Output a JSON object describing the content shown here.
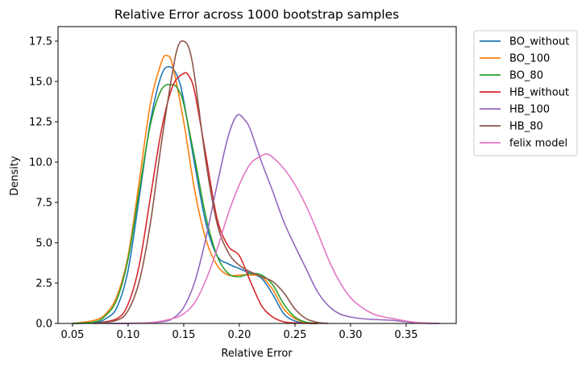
{
  "chart_data": {
    "type": "line",
    "title": "Relative Error across 1000 bootstrap samples",
    "xlabel": "Relative Error",
    "ylabel": "Density",
    "xlim": [
      0.037,
      0.395
    ],
    "ylim": [
      0,
      18.4
    ],
    "xticks": [
      0.05,
      0.1,
      0.15,
      0.2,
      0.25,
      0.3,
      0.35
    ],
    "xtick_labels": [
      "0.05",
      "0.10",
      "0.15",
      "0.20",
      "0.25",
      "0.30",
      "0.35"
    ],
    "yticks": [
      0,
      2.5,
      5,
      7.5,
      10,
      12.5,
      15,
      17.5
    ],
    "ytick_labels": [
      "0.0",
      "2.5",
      "5.0",
      "7.5",
      "10.0",
      "12.5",
      "15.0",
      "17.5"
    ],
    "grid": false,
    "legend_position": "outside-right",
    "series": [
      {
        "name": "BO_without",
        "color": "#1f77b4",
        "x": [
          0.05,
          0.07,
          0.08,
          0.09,
          0.1,
          0.11,
          0.12,
          0.13,
          0.138,
          0.145,
          0.15,
          0.16,
          0.17,
          0.18,
          0.19,
          0.2,
          0.21,
          0.22,
          0.23,
          0.24,
          0.25,
          0.26,
          0.27
        ],
        "y": [
          0.0,
          0.05,
          0.3,
          1.0,
          3.3,
          7.8,
          12.5,
          15.4,
          15.9,
          15.2,
          13.8,
          9.8,
          6.2,
          4.2,
          3.7,
          3.4,
          3.1,
          2.8,
          1.8,
          0.6,
          0.15,
          0.03,
          0.0
        ]
      },
      {
        "name": "BO_100",
        "color": "#ff7f0e",
        "x": [
          0.05,
          0.07,
          0.08,
          0.09,
          0.1,
          0.11,
          0.12,
          0.13,
          0.135,
          0.14,
          0.15,
          0.16,
          0.17,
          0.18,
          0.19,
          0.2,
          0.21,
          0.22,
          0.23,
          0.24,
          0.25,
          0.26,
          0.27
        ],
        "y": [
          0.0,
          0.2,
          0.6,
          1.7,
          4.2,
          8.8,
          13.6,
          16.2,
          16.6,
          16.0,
          12.5,
          8.2,
          5.2,
          3.6,
          3.0,
          3.0,
          3.0,
          2.9,
          2.1,
          0.9,
          0.3,
          0.05,
          0.0
        ]
      },
      {
        "name": "BO_80",
        "color": "#2ca02c",
        "x": [
          0.05,
          0.07,
          0.08,
          0.09,
          0.1,
          0.11,
          0.12,
          0.13,
          0.14,
          0.145,
          0.15,
          0.16,
          0.17,
          0.18,
          0.19,
          0.2,
          0.21,
          0.22,
          0.23,
          0.24,
          0.25,
          0.26,
          0.27
        ],
        "y": [
          0.0,
          0.1,
          0.5,
          1.5,
          4.0,
          8.2,
          12.3,
          14.5,
          14.8,
          14.5,
          13.6,
          10.2,
          6.6,
          4.2,
          3.1,
          2.9,
          3.1,
          3.0,
          2.4,
          1.2,
          0.4,
          0.08,
          0.0
        ]
      },
      {
        "name": "HB_without",
        "color": "#d62728",
        "x": [
          0.07,
          0.09,
          0.1,
          0.11,
          0.12,
          0.13,
          0.14,
          0.15,
          0.155,
          0.16,
          0.17,
          0.18,
          0.19,
          0.2,
          0.21,
          0.22,
          0.23,
          0.24,
          0.25,
          0.26,
          0.27
        ],
        "y": [
          0.0,
          0.3,
          1.2,
          3.6,
          7.8,
          12.0,
          14.7,
          15.5,
          15.3,
          14.3,
          10.4,
          6.5,
          4.8,
          4.2,
          2.6,
          1.1,
          0.4,
          0.1,
          0.03,
          0.01,
          0.0
        ]
      },
      {
        "name": "HB_100",
        "color": "#9467bd",
        "x": [
          0.08,
          0.11,
          0.13,
          0.14,
          0.15,
          0.16,
          0.17,
          0.18,
          0.19,
          0.198,
          0.205,
          0.21,
          0.22,
          0.23,
          0.24,
          0.25,
          0.26,
          0.27,
          0.28,
          0.29,
          0.3,
          0.31,
          0.32,
          0.33,
          0.34,
          0.35,
          0.36,
          0.38
        ],
        "y": [
          0.0,
          0.02,
          0.1,
          0.3,
          1.0,
          2.6,
          5.3,
          8.6,
          11.6,
          12.9,
          12.6,
          12.0,
          10.0,
          8.2,
          6.3,
          4.8,
          3.4,
          2.0,
          1.1,
          0.6,
          0.4,
          0.3,
          0.25,
          0.22,
          0.18,
          0.1,
          0.03,
          0.0
        ]
      },
      {
        "name": "HB_80",
        "color": "#8c564b",
        "x": [
          0.07,
          0.09,
          0.1,
          0.11,
          0.12,
          0.13,
          0.14,
          0.145,
          0.15,
          0.155,
          0.16,
          0.17,
          0.18,
          0.19,
          0.2,
          0.21,
          0.22,
          0.23,
          0.24,
          0.25,
          0.26,
          0.27,
          0.28
        ],
        "y": [
          0.0,
          0.2,
          0.8,
          2.6,
          6.2,
          11.2,
          15.6,
          17.2,
          17.5,
          17.0,
          15.2,
          10.0,
          6.2,
          4.4,
          3.6,
          3.2,
          2.9,
          2.6,
          1.9,
          0.9,
          0.3,
          0.07,
          0.0
        ]
      },
      {
        "name": "felix model",
        "color": "#e377c2",
        "x": [
          0.09,
          0.12,
          0.14,
          0.15,
          0.16,
          0.17,
          0.18,
          0.19,
          0.2,
          0.21,
          0.22,
          0.225,
          0.23,
          0.24,
          0.25,
          0.26,
          0.27,
          0.28,
          0.29,
          0.3,
          0.31,
          0.32,
          0.33,
          0.34,
          0.35,
          0.36,
          0.37,
          0.38
        ],
        "y": [
          0.0,
          0.05,
          0.3,
          0.6,
          1.3,
          2.7,
          4.6,
          6.8,
          8.6,
          9.9,
          10.4,
          10.5,
          10.3,
          9.6,
          8.6,
          7.3,
          5.7,
          4.0,
          2.6,
          1.6,
          1.0,
          0.6,
          0.4,
          0.28,
          0.15,
          0.06,
          0.02,
          0.0
        ]
      }
    ]
  }
}
